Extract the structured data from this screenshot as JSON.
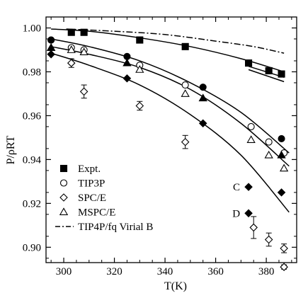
{
  "chart_data": {
    "type": "scatter",
    "xlabel": "T(K)",
    "ylabel": "P/ρRT",
    "xlim": [
      293,
      392
    ],
    "ylim": [
      0.893,
      1.005
    ],
    "grid": false,
    "legend_position": "bottom-left",
    "x_ticks": [
      {
        "value": 300,
        "label": "300"
      },
      {
        "value": 320,
        "label": "320"
      },
      {
        "value": 340,
        "label": "340"
      },
      {
        "value": 360,
        "label": "360"
      },
      {
        "value": 380,
        "label": "380"
      }
    ],
    "y_ticks": [
      {
        "value": 0.9,
        "label": "0.90"
      },
      {
        "value": 0.92,
        "label": "0.92"
      },
      {
        "value": 0.94,
        "label": "0.94"
      },
      {
        "value": 0.96,
        "label": "0.96"
      },
      {
        "value": 0.98,
        "label": "0.98"
      },
      {
        "value": 1.0,
        "label": "1.00"
      }
    ],
    "series": [
      {
        "name": "Expt.",
        "marker": "square-filled",
        "points": [
          {
            "x": 303,
            "y": 0.998
          },
          {
            "x": 308,
            "y": 0.998
          },
          {
            "x": 330,
            "y": 0.9945
          },
          {
            "x": 348,
            "y": 0.9915
          },
          {
            "x": 373,
            "y": 0.984
          },
          {
            "x": 381,
            "y": 0.9805
          },
          {
            "x": 386,
            "y": 0.979
          }
        ]
      },
      {
        "name": "TIP3P",
        "marker": "circle-open",
        "points": [
          {
            "x": 295,
            "y": 0.9945
          },
          {
            "x": 303,
            "y": 0.991
          },
          {
            "x": 308,
            "y": 0.99
          },
          {
            "x": 330,
            "y": 0.983
          },
          {
            "x": 348,
            "y": 0.974
          },
          {
            "x": 374,
            "y": 0.955
          },
          {
            "x": 381,
            "y": 0.948
          },
          {
            "x": 387,
            "y": 0.943
          }
        ]
      },
      {
        "name": "SPC/E",
        "marker": "diamond-open",
        "points": [
          {
            "x": 303,
            "y": 0.984,
            "err": 0.002
          },
          {
            "x": 308,
            "y": 0.971,
            "err": 0.003
          },
          {
            "x": 330,
            "y": 0.9645,
            "err": 0.002
          },
          {
            "x": 348,
            "y": 0.948,
            "err": 0.003
          },
          {
            "x": 375,
            "y": 0.909,
            "err": 0.005
          },
          {
            "x": 381,
            "y": 0.9035,
            "err": 0.003
          },
          {
            "x": 387,
            "y": 0.8995,
            "err": 0.002
          },
          {
            "x": 387,
            "y": 0.891,
            "err": 0.001
          }
        ]
      },
      {
        "name": "MSPC/E",
        "marker": "triangle-open",
        "points": [
          {
            "x": 295,
            "y": 0.991
          },
          {
            "x": 303,
            "y": 0.99
          },
          {
            "x": 308,
            "y": 0.989
          },
          {
            "x": 330,
            "y": 0.981
          },
          {
            "x": 348,
            "y": 0.97
          },
          {
            "x": 374,
            "y": 0.949
          },
          {
            "x": 381,
            "y": 0.942
          },
          {
            "x": 387,
            "y": 0.936
          }
        ]
      },
      {
        "name": "",
        "marker": "diamond-filled",
        "points": [
          {
            "x": 295,
            "y": 0.988
          },
          {
            "x": 325,
            "y": 0.977
          },
          {
            "x": 355,
            "y": 0.9565
          },
          {
            "x": 386,
            "y": 0.925
          }
        ]
      },
      {
        "name": "",
        "marker": "circle-filled",
        "points": [
          {
            "x": 295,
            "y": 0.9945
          },
          {
            "x": 325,
            "y": 0.987
          },
          {
            "x": 355,
            "y": 0.973
          },
          {
            "x": 386,
            "y": 0.9495
          }
        ]
      },
      {
        "name": "",
        "marker": "triangle-filled",
        "points": [
          {
            "x": 295,
            "y": 0.991
          },
          {
            "x": 325,
            "y": 0.984
          },
          {
            "x": 355,
            "y": 0.968
          },
          {
            "x": 386,
            "y": 0.942
          }
        ]
      }
    ],
    "curves": [
      {
        "name": "",
        "style": "solid",
        "points": [
          [
            295,
            0.9995
          ],
          [
            310,
            0.9985
          ],
          [
            330,
            0.9955
          ],
          [
            350,
            0.9915
          ],
          [
            370,
            0.986
          ],
          [
            387,
            0.98
          ]
        ]
      },
      {
        "name": "",
        "style": "solid",
        "points": [
          [
            295,
            0.995
          ],
          [
            310,
            0.9915
          ],
          [
            330,
            0.985
          ],
          [
            350,
            0.975
          ],
          [
            370,
            0.9615
          ],
          [
            389,
            0.943
          ]
        ]
      },
      {
        "name": "",
        "style": "solid",
        "points": [
          [
            295,
            0.9915
          ],
          [
            310,
            0.988
          ],
          [
            330,
            0.982
          ],
          [
            350,
            0.972
          ],
          [
            370,
            0.9565
          ],
          [
            389,
            0.937
          ]
        ]
      },
      {
        "name": "",
        "style": "solid",
        "points": [
          [
            295,
            0.9885
          ],
          [
            310,
            0.983
          ],
          [
            330,
            0.974
          ],
          [
            350,
            0.9605
          ],
          [
            370,
            0.942
          ],
          [
            389,
            0.916
          ]
        ]
      },
      {
        "name": "TIP4P/fq Virial B",
        "style": "dashdot",
        "points": [
          [
            301,
            0.9995
          ],
          [
            320,
            0.9985
          ],
          [
            340,
            0.997
          ],
          [
            360,
            0.994
          ],
          [
            375,
            0.9915
          ],
          [
            387,
            0.9885
          ]
        ]
      },
      {
        "name": "",
        "style": "solid",
        "points": [
          [
            373,
            0.9825
          ],
          [
            387,
            0.9775
          ]
        ]
      },
      {
        "name": "",
        "style": "solid",
        "points": [
          [
            373,
            0.981
          ],
          [
            387,
            0.9755
          ]
        ]
      }
    ],
    "annotations": [
      {
        "label": "C",
        "marker": "diamond-filled",
        "x": 373,
        "y": 0.9275
      },
      {
        "label": "D",
        "marker": "diamond-filled",
        "x": 373,
        "y": 0.9155
      }
    ],
    "legend": [
      {
        "label": "Expt.",
        "marker": "square-filled",
        "line": "none"
      },
      {
        "label": "TIP3P",
        "marker": "circle-open",
        "line": "none"
      },
      {
        "label": "SPC/E",
        "marker": "diamond-open",
        "line": "none"
      },
      {
        "label": "MSPC/E",
        "marker": "triangle-open",
        "line": "none"
      },
      {
        "label": "TIP4P/fq Virial B",
        "marker": "none",
        "line": "dashdot"
      }
    ]
  }
}
